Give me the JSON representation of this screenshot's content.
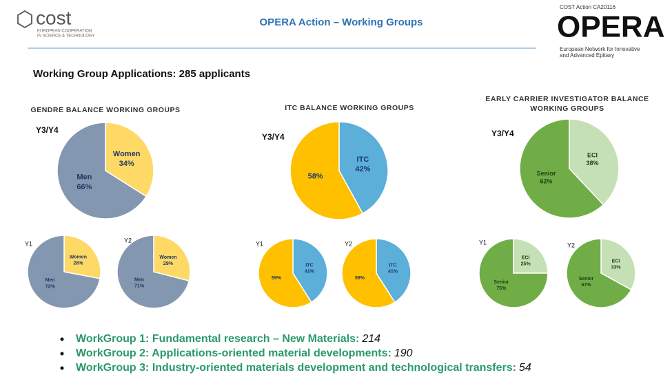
{
  "header": {
    "logo": "cost",
    "logo_line1": "EUROPEAN COOPERATION",
    "logo_line2": "IN SCIENCE & TECHNOLOGY",
    "title": "OPERA Action – Working Groups",
    "action": "COST Action CA20116",
    "brand": "OPERA",
    "brand_line1": "European Network for Innovative",
    "brand_line2": "and Advanced Epitaxy"
  },
  "heading": "Working Group Applications: 285 applicants",
  "groups": [
    {
      "title": [
        "GENDRE BALANCE WORKING GROUPS"
      ]
    },
    {
      "title": [
        "ITC BALANCE WORKING GROUPS"
      ]
    },
    {
      "title": [
        "EARLY CARRIER INVESTIGATOR BALANCE",
        "WORKING GROUPS"
      ]
    }
  ],
  "chart_data": [
    {
      "type": "pie",
      "title": "Y3/Y4",
      "categories": [
        "Women",
        "Men"
      ],
      "values": [
        34,
        66
      ],
      "value_labels": [
        "34%",
        "66%"
      ],
      "colors": [
        "#ffd966",
        "#8497b0"
      ]
    },
    {
      "type": "pie",
      "title": "Y1",
      "categories": [
        "Women",
        "Men"
      ],
      "values": [
        28,
        72
      ],
      "value_labels": [
        "28%",
        "72%"
      ],
      "colors": [
        "#ffd966",
        "#8497b0"
      ]
    },
    {
      "type": "pie",
      "title": "Y2",
      "categories": [
        "Women",
        "Men"
      ],
      "values": [
        29,
        71
      ],
      "value_labels": [
        "29%",
        "71%"
      ],
      "colors": [
        "#ffd966",
        "#8497b0"
      ]
    },
    {
      "type": "pie",
      "title": "Y3/Y4",
      "categories": [
        "ITC",
        null
      ],
      "values": [
        42,
        58
      ],
      "value_labels": [
        "42%",
        "58%"
      ],
      "colors": [
        "#5bafd9",
        "#ffc000"
      ]
    },
    {
      "type": "pie",
      "title": "Y1",
      "categories": [
        "ITC",
        null
      ],
      "values": [
        41,
        59
      ],
      "value_labels": [
        "41%",
        "59%"
      ],
      "colors": [
        "#5bafd9",
        "#ffc000"
      ]
    },
    {
      "type": "pie",
      "title": "Y2",
      "categories": [
        "ITC",
        null
      ],
      "values": [
        41,
        59
      ],
      "value_labels": [
        "41%",
        "59%"
      ],
      "colors": [
        "#5bafd9",
        "#ffc000"
      ]
    },
    {
      "type": "pie",
      "title": "Y3/Y4",
      "categories": [
        "ECI",
        "Senior"
      ],
      "values": [
        38,
        62
      ],
      "value_labels": [
        "38%",
        "62%"
      ],
      "colors": [
        "#c5e0b4",
        "#70ad47"
      ]
    },
    {
      "type": "pie",
      "title": "Y1",
      "categories": [
        "ECI",
        "Senior"
      ],
      "values": [
        25,
        75
      ],
      "value_labels": [
        "25%",
        "75%"
      ],
      "colors": [
        "#c5e0b4",
        "#70ad47"
      ]
    },
    {
      "type": "pie",
      "title": "Y2",
      "categories": [
        "ECI",
        "Senior"
      ],
      "values": [
        33,
        67
      ],
      "value_labels": [
        "33%",
        "67%"
      ],
      "colors": [
        "#c5e0b4",
        "#70ad47"
      ]
    }
  ],
  "bullets": [
    {
      "text": "WorkGroup 1: Fundamental research – New Materials:",
      "count": 214
    },
    {
      "text": "WorkGroup 2: Applications-oriented material developments:",
      "count": 190
    },
    {
      "text": "WorkGroup 3: Industry-oriented materials development and technological transfers:",
      "count": 54
    }
  ]
}
